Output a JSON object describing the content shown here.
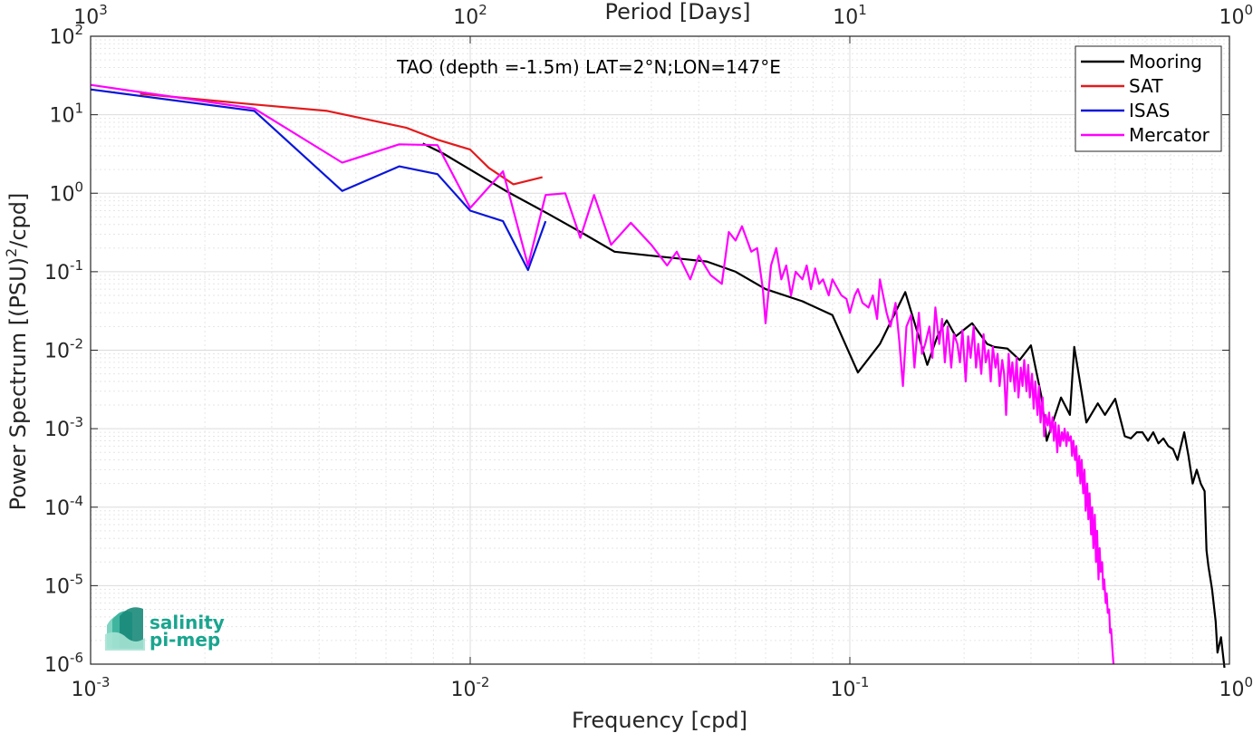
{
  "chart_data": {
    "type": "line",
    "title": "",
    "annotation": "TAO (depth =-1.5m) LAT=2°N;LON=147°E",
    "xlabel": "Frequency [cpd]",
    "ylabel_prefix": "Power Spectrum [(PSU)",
    "ylabel_sup": "2",
    "ylabel_suffix": "/cpd]",
    "x2label": "Period [Days]",
    "x_scale": "log",
    "y_scale": "log",
    "xlim": [
      0.001,
      1
    ],
    "ylim": [
      1e-06,
      100
    ],
    "x2lim": [
      1000,
      1
    ],
    "grid": true,
    "legend_position": "top-right",
    "x_ticks": [
      {
        "value": 0.001,
        "base": "10",
        "exp": "-3"
      },
      {
        "value": 0.01,
        "base": "10",
        "exp": "-2"
      },
      {
        "value": 0.1,
        "base": "10",
        "exp": "-1"
      },
      {
        "value": 1,
        "base": "10",
        "exp": "0"
      }
    ],
    "x2_ticks": [
      {
        "value": 1000,
        "base": "10",
        "exp": "3"
      },
      {
        "value": 100,
        "base": "10",
        "exp": "2"
      },
      {
        "value": 10,
        "base": "10",
        "exp": "1"
      },
      {
        "value": 1,
        "base": "10",
        "exp": "0"
      }
    ],
    "y_ticks": [
      {
        "value": 100,
        "base": "10",
        "exp": "2"
      },
      {
        "value": 10,
        "base": "10",
        "exp": "1"
      },
      {
        "value": 1,
        "base": "10",
        "exp": "0"
      },
      {
        "value": 0.1,
        "base": "10",
        "exp": "-1"
      },
      {
        "value": 0.01,
        "base": "10",
        "exp": "-2"
      },
      {
        "value": 0.001,
        "base": "10",
        "exp": "-3"
      },
      {
        "value": 0.0001,
        "base": "10",
        "exp": "-4"
      },
      {
        "value": 1e-05,
        "base": "10",
        "exp": "-5"
      },
      {
        "value": 1e-06,
        "base": "10",
        "exp": "-6"
      }
    ],
    "series": [
      {
        "name": "Mooring",
        "color": "#000000",
        "points": [
          [
            0.0075,
            4.3
          ],
          [
            0.0085,
            3.2
          ],
          [
            0.01,
            2.0
          ],
          [
            0.0125,
            1.05
          ],
          [
            0.016,
            0.55
          ],
          [
            0.02,
            0.3
          ],
          [
            0.024,
            0.18
          ],
          [
            0.03,
            0.16
          ],
          [
            0.042,
            0.135
          ],
          [
            0.05,
            0.1
          ],
          [
            0.06,
            0.06
          ],
          [
            0.075,
            0.042
          ],
          [
            0.09,
            0.028
          ],
          [
            0.105,
            0.0052
          ],
          [
            0.12,
            0.012
          ],
          [
            0.14,
            0.055
          ],
          [
            0.16,
            0.0065
          ],
          [
            0.17,
            0.015
          ],
          [
            0.18,
            0.024
          ],
          [
            0.19,
            0.015
          ],
          [
            0.21,
            0.022
          ],
          [
            0.23,
            0.012
          ],
          [
            0.24,
            0.011
          ],
          [
            0.26,
            0.0105
          ],
          [
            0.28,
            0.0075
          ],
          [
            0.3,
            0.0115
          ],
          [
            0.32,
            0.0025
          ],
          [
            0.33,
            0.0007
          ],
          [
            0.36,
            0.0025
          ],
          [
            0.38,
            0.0015
          ],
          [
            0.39,
            0.011
          ],
          [
            0.41,
            0.0025
          ],
          [
            0.42,
            0.0012
          ],
          [
            0.45,
            0.0021
          ],
          [
            0.47,
            0.0015
          ],
          [
            0.5,
            0.0024
          ],
          [
            0.53,
            0.0008
          ],
          [
            0.55,
            0.00075
          ],
          [
            0.57,
            0.0009
          ],
          [
            0.59,
            0.0009
          ],
          [
            0.61,
            0.0007
          ],
          [
            0.63,
            0.0009
          ],
          [
            0.65,
            0.00065
          ],
          [
            0.67,
            0.00075
          ],
          [
            0.69,
            0.0006
          ],
          [
            0.71,
            0.00055
          ],
          [
            0.73,
            0.0004
          ],
          [
            0.76,
            0.0009
          ],
          [
            0.78,
            0.00045
          ],
          [
            0.8,
            0.0002
          ],
          [
            0.82,
            0.0003
          ],
          [
            0.84,
            0.0002
          ],
          [
            0.86,
            0.00016
          ],
          [
            0.87,
            2.8e-05
          ],
          [
            0.88,
            1.8e-05
          ],
          [
            0.9,
            9e-06
          ],
          [
            0.92,
            3.5e-06
          ],
          [
            0.93,
            1.4e-06
          ],
          [
            0.95,
            2.2e-06
          ],
          [
            0.97,
            9e-07
          ]
        ]
      },
      {
        "name": "SAT",
        "color": "#e41a1c",
        "points": [
          [
            0.00135,
            18.5
          ],
          [
            0.0027,
            13.5
          ],
          [
            0.0042,
            11.2
          ],
          [
            0.0068,
            6.8
          ],
          [
            0.0082,
            4.8
          ],
          [
            0.01,
            3.6
          ],
          [
            0.0112,
            2.1
          ],
          [
            0.013,
            1.3
          ],
          [
            0.0155,
            1.6
          ]
        ]
      },
      {
        "name": "ISAS",
        "color": "#0a16d9",
        "points": [
          [
            0.001,
            21
          ],
          [
            0.0027,
            11.2
          ],
          [
            0.0046,
            1.07
          ],
          [
            0.0065,
            2.2
          ],
          [
            0.0082,
            1.75
          ],
          [
            0.01,
            0.6
          ],
          [
            0.0122,
            0.44
          ],
          [
            0.0142,
            0.105
          ],
          [
            0.0158,
            0.44
          ]
        ]
      },
      {
        "name": "Mercator",
        "color": "#ff00ff",
        "points": [
          [
            0.001,
            24
          ],
          [
            0.0027,
            12
          ],
          [
            0.0046,
            2.45
          ],
          [
            0.0065,
            4.2
          ],
          [
            0.0082,
            4.1
          ],
          [
            0.01,
            0.65
          ],
          [
            0.0122,
            1.9
          ],
          [
            0.0142,
            0.12
          ],
          [
            0.0158,
            0.95
          ],
          [
            0.0178,
            1.0
          ],
          [
            0.0195,
            0.27
          ],
          [
            0.0212,
            0.95
          ],
          [
            0.0235,
            0.22
          ],
          [
            0.0265,
            0.42
          ],
          [
            0.03,
            0.22
          ],
          [
            0.033,
            0.12
          ],
          [
            0.035,
            0.18
          ],
          [
            0.038,
            0.08
          ],
          [
            0.04,
            0.16
          ],
          [
            0.043,
            0.09
          ],
          [
            0.046,
            0.07
          ],
          [
            0.048,
            0.32
          ],
          [
            0.05,
            0.25
          ],
          [
            0.052,
            0.38
          ],
          [
            0.055,
            0.18
          ],
          [
            0.057,
            0.2
          ],
          [
            0.059,
            0.06
          ],
          [
            0.06,
            0.022
          ],
          [
            0.062,
            0.12
          ],
          [
            0.064,
            0.2
          ],
          [
            0.066,
            0.08
          ],
          [
            0.068,
            0.12
          ],
          [
            0.07,
            0.05
          ],
          [
            0.072,
            0.1
          ],
          [
            0.075,
            0.08
          ],
          [
            0.077,
            0.12
          ],
          [
            0.079,
            0.06
          ],
          [
            0.081,
            0.11
          ],
          [
            0.083,
            0.07
          ],
          [
            0.085,
            0.08
          ],
          [
            0.088,
            0.05
          ],
          [
            0.09,
            0.08
          ],
          [
            0.093,
            0.06
          ],
          [
            0.095,
            0.05
          ],
          [
            0.098,
            0.045
          ],
          [
            0.1,
            0.03
          ],
          [
            0.103,
            0.05
          ],
          [
            0.105,
            0.06
          ],
          [
            0.108,
            0.04
          ],
          [
            0.112,
            0.035
          ],
          [
            0.115,
            0.05
          ],
          [
            0.118,
            0.025
          ],
          [
            0.12,
            0.08
          ],
          [
            0.125,
            0.03
          ],
          [
            0.128,
            0.02
          ],
          [
            0.132,
            0.04
          ],
          [
            0.135,
            0.013
          ],
          [
            0.138,
            0.0035
          ],
          [
            0.141,
            0.02
          ],
          [
            0.145,
            0.028
          ],
          [
            0.148,
            0.006
          ],
          [
            0.152,
            0.03
          ],
          [
            0.155,
            0.009
          ],
          [
            0.158,
            0.012
          ],
          [
            0.162,
            0.02
          ],
          [
            0.165,
            0.008
          ],
          [
            0.168,
            0.035
          ],
          [
            0.172,
            0.012
          ],
          [
            0.175,
            0.025
          ],
          [
            0.178,
            0.007
          ],
          [
            0.181,
            0.02
          ],
          [
            0.185,
            0.006
          ],
          [
            0.188,
            0.016
          ],
          [
            0.192,
            0.012
          ],
          [
            0.195,
            0.007
          ],
          [
            0.198,
            0.018
          ],
          [
            0.202,
            0.004
          ],
          [
            0.205,
            0.015
          ],
          [
            0.208,
            0.008
          ],
          [
            0.212,
            0.02
          ],
          [
            0.215,
            0.006
          ],
          [
            0.218,
            0.012
          ],
          [
            0.222,
            0.005
          ],
          [
            0.225,
            0.016
          ],
          [
            0.228,
            0.007
          ],
          [
            0.232,
            0.01
          ],
          [
            0.235,
            0.004
          ],
          [
            0.238,
            0.011
          ],
          [
            0.242,
            0.006
          ],
          [
            0.245,
            0.009
          ],
          [
            0.248,
            0.0035
          ],
          [
            0.252,
            0.0075
          ],
          [
            0.255,
            0.005
          ],
          [
            0.258,
            0.0015
          ],
          [
            0.262,
            0.009
          ],
          [
            0.265,
            0.004
          ],
          [
            0.268,
            0.007
          ],
          [
            0.272,
            0.003
          ],
          [
            0.275,
            0.008
          ],
          [
            0.278,
            0.0025
          ],
          [
            0.282,
            0.006
          ],
          [
            0.285,
            0.0035
          ],
          [
            0.288,
            0.0075
          ],
          [
            0.292,
            0.003
          ],
          [
            0.295,
            0.0065
          ],
          [
            0.298,
            0.0025
          ],
          [
            0.302,
            0.005
          ],
          [
            0.305,
            0.0018
          ],
          [
            0.308,
            0.004
          ],
          [
            0.312,
            0.0015
          ],
          [
            0.315,
            0.0035
          ],
          [
            0.318,
            0.0012
          ],
          [
            0.322,
            0.0025
          ],
          [
            0.325,
            0.0008
          ],
          [
            0.328,
            0.0015
          ],
          [
            0.332,
            0.0011
          ],
          [
            0.335,
            0.0016
          ],
          [
            0.338,
            0.0009
          ],
          [
            0.342,
            0.0014
          ],
          [
            0.345,
            0.0007
          ],
          [
            0.348,
            0.0012
          ],
          [
            0.352,
            0.0005
          ],
          [
            0.355,
            0.0011
          ],
          [
            0.358,
            0.0006
          ],
          [
            0.362,
            0.0009
          ],
          [
            0.365,
            0.0007
          ],
          [
            0.368,
            0.001
          ],
          [
            0.372,
            0.0006
          ],
          [
            0.375,
            0.0009
          ],
          [
            0.378,
            0.0007
          ],
          [
            0.382,
            0.0008
          ],
          [
            0.385,
            0.00045
          ],
          [
            0.388,
            0.0007
          ],
          [
            0.392,
            0.0004
          ],
          [
            0.395,
            0.0006
          ],
          [
            0.398,
            0.00025
          ],
          [
            0.402,
            0.00045
          ],
          [
            0.405,
            0.0002
          ],
          [
            0.408,
            0.0004
          ],
          [
            0.412,
            0.00015
          ],
          [
            0.415,
            0.0003
          ],
          [
            0.418,
            9e-05
          ],
          [
            0.422,
            0.0002
          ],
          [
            0.425,
            7e-05
          ],
          [
            0.428,
            0.00015
          ],
          [
            0.432,
            4.5e-05
          ],
          [
            0.435,
            0.0001
          ],
          [
            0.438,
            3e-05
          ],
          [
            0.442,
            8e-05
          ],
          [
            0.445,
            2e-05
          ],
          [
            0.448,
            5e-05
          ],
          [
            0.452,
            1.2e-05
          ],
          [
            0.455,
            3e-05
          ],
          [
            0.458,
            1.5e-05
          ],
          [
            0.462,
            2e-05
          ],
          [
            0.465,
            9e-06
          ],
          [
            0.468,
            1.2e-05
          ],
          [
            0.472,
            6e-06
          ],
          [
            0.475,
            8e-06
          ],
          [
            0.478,
            4.5e-06
          ],
          [
            0.482,
            5e-06
          ],
          [
            0.485,
            2.5e-06
          ],
          [
            0.488,
            2.8e-06
          ],
          [
            0.492,
            1.5e-06
          ],
          [
            0.495,
            1e-06
          ]
        ]
      }
    ]
  },
  "logo": {
    "line1": "salinity",
    "line2": "pi-mep"
  },
  "colors": {
    "axis": "#262626",
    "grid": "#d9d9d9",
    "logo": "#1a9a8a"
  }
}
